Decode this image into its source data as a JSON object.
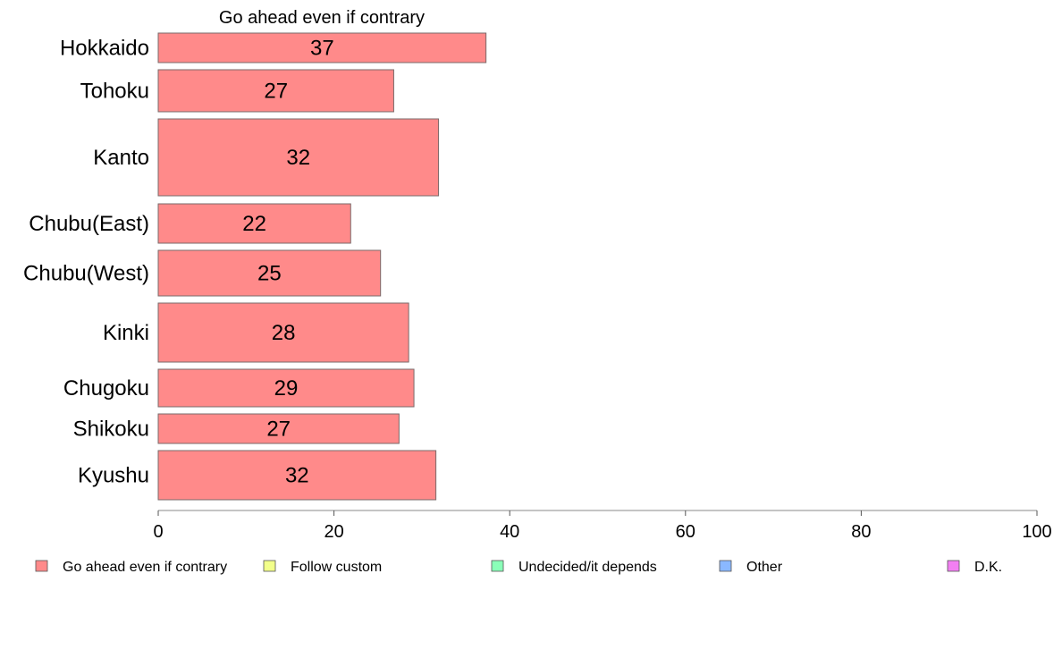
{
  "chart_data": {
    "type": "bar",
    "orientation": "horizontal",
    "title": "Go ahead even if contrary",
    "xlabel": "",
    "ylabel": "",
    "xlim": [
      0,
      100
    ],
    "x_ticks": [
      0,
      20,
      40,
      60,
      80,
      100
    ],
    "grid": false,
    "legend_placement": "bottom",
    "categories": [
      "Hokkaido",
      "Tohoku",
      "Kanto",
      "Chubu(East)",
      "Chubu(West)",
      "Kinki",
      "Chugoku",
      "Shikoku",
      "Kyushu"
    ],
    "series": [
      {
        "name": "Go ahead even if contrary",
        "color": "#ff8a8a",
        "values": [
          37.3,
          26.8,
          31.9,
          21.9,
          25.3,
          28.5,
          29.1,
          27.4,
          31.6
        ],
        "labels": [
          "37",
          "27",
          "32",
          "22",
          "25",
          "28",
          "29",
          "27",
          "32"
        ]
      }
    ],
    "legend": [
      {
        "label": "Go ahead even if contrary",
        "color": "#ff8a8a"
      },
      {
        "label": "Follow custom",
        "color": "#f2ff8a"
      },
      {
        "label": "Undecided/it depends",
        "color": "#8affb8"
      },
      {
        "label": "Other",
        "color": "#8ab8ff"
      },
      {
        "label": "D.K.",
        "color": "#f27ff2"
      }
    ]
  }
}
